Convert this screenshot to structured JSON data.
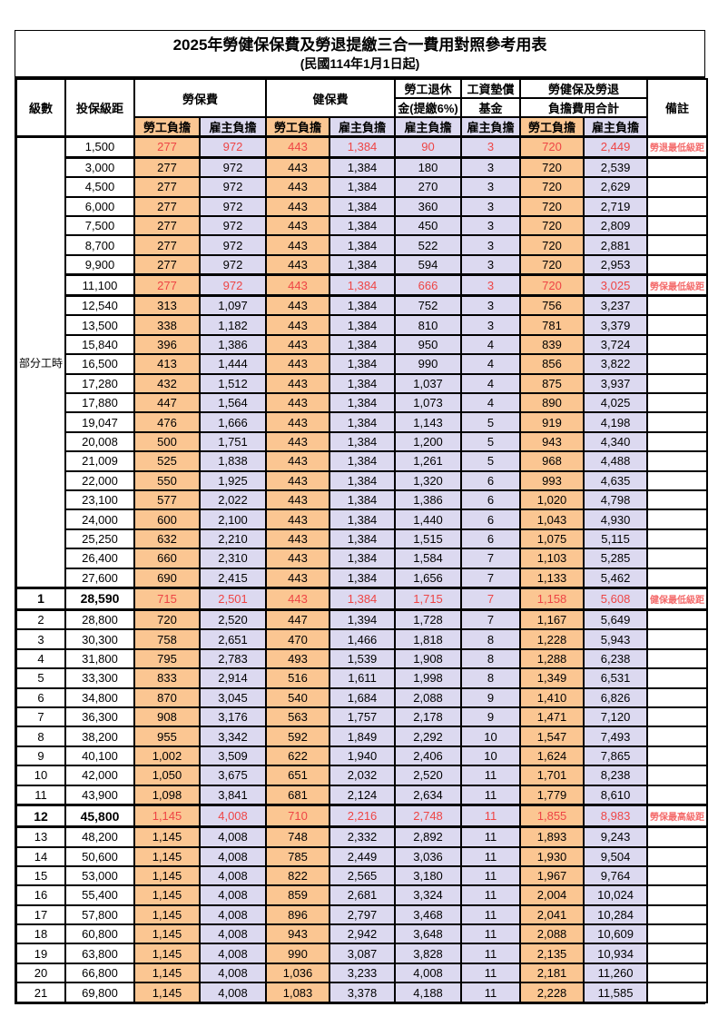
{
  "title": {
    "line1": "2025年勞健保保費及勞退提繳三合一費用對照參考用表",
    "line2": "(民國114年1月1日起)"
  },
  "colors": {
    "employee_bg": "#fbc692",
    "employer_bg": "#dcd9f0",
    "highlight_text": "#ee4545",
    "remark_text": "#f46b6b"
  },
  "header": {
    "col_level": "級數",
    "col_bracket": "投保級距",
    "grp_labor": "勞保費",
    "grp_health": "健保費",
    "grp_pension_l1": "勞工退休",
    "grp_pension_l2": "金(提繳6%)",
    "grp_wage_l1": "工資墊償",
    "grp_wage_l2": "基金",
    "grp_total_l1": "勞健保及勞退",
    "grp_total_l2": "負擔費用合計",
    "col_remark": "備註",
    "sub_employee": "勞工負擔",
    "sub_employer": "雇主負擔"
  },
  "table": {
    "part_time_label": "部分工時",
    "part_time_rowspan": 23,
    "rows": [
      {
        "level": "",
        "bracket": "1,500",
        "labor_emp": "277",
        "labor_er": "972",
        "health_emp": "443",
        "health_er": "1,384",
        "pension_er": "90",
        "wage_fund_er": "3",
        "total_emp": "720",
        "total_er": "2,449",
        "remark": "勞退最低級距",
        "highlight": true,
        "emph": false
      },
      {
        "level": "",
        "bracket": "3,000",
        "labor_emp": "277",
        "labor_er": "972",
        "health_emp": "443",
        "health_er": "1,384",
        "pension_er": "180",
        "wage_fund_er": "3",
        "total_emp": "720",
        "total_er": "2,539",
        "remark": "",
        "highlight": false,
        "emph": false
      },
      {
        "level": "",
        "bracket": "4,500",
        "labor_emp": "277",
        "labor_er": "972",
        "health_emp": "443",
        "health_er": "1,384",
        "pension_er": "270",
        "wage_fund_er": "3",
        "total_emp": "720",
        "total_er": "2,629",
        "remark": "",
        "highlight": false,
        "emph": false
      },
      {
        "level": "",
        "bracket": "6,000",
        "labor_emp": "277",
        "labor_er": "972",
        "health_emp": "443",
        "health_er": "1,384",
        "pension_er": "360",
        "wage_fund_er": "3",
        "total_emp": "720",
        "total_er": "2,719",
        "remark": "",
        "highlight": false,
        "emph": false
      },
      {
        "level": "",
        "bracket": "7,500",
        "labor_emp": "277",
        "labor_er": "972",
        "health_emp": "443",
        "health_er": "1,384",
        "pension_er": "450",
        "wage_fund_er": "3",
        "total_emp": "720",
        "total_er": "2,809",
        "remark": "",
        "highlight": false,
        "emph": false
      },
      {
        "level": "",
        "bracket": "8,700",
        "labor_emp": "277",
        "labor_er": "972",
        "health_emp": "443",
        "health_er": "1,384",
        "pension_er": "522",
        "wage_fund_er": "3",
        "total_emp": "720",
        "total_er": "2,881",
        "remark": "",
        "highlight": false,
        "emph": false
      },
      {
        "level": "",
        "bracket": "9,900",
        "labor_emp": "277",
        "labor_er": "972",
        "health_emp": "443",
        "health_er": "1,384",
        "pension_er": "594",
        "wage_fund_er": "3",
        "total_emp": "720",
        "total_er": "2,953",
        "remark": "",
        "highlight": false,
        "emph": false
      },
      {
        "level": "",
        "bracket": "11,100",
        "labor_emp": "277",
        "labor_er": "972",
        "health_emp": "443",
        "health_er": "1,384",
        "pension_er": "666",
        "wage_fund_er": "3",
        "total_emp": "720",
        "total_er": "3,025",
        "remark": "勞保最低級距",
        "highlight": true,
        "emph": false
      },
      {
        "level": "",
        "bracket": "12,540",
        "labor_emp": "313",
        "labor_er": "1,097",
        "health_emp": "443",
        "health_er": "1,384",
        "pension_er": "752",
        "wage_fund_er": "3",
        "total_emp": "756",
        "total_er": "3,237",
        "remark": "",
        "highlight": false,
        "emph": false
      },
      {
        "level": "",
        "bracket": "13,500",
        "labor_emp": "338",
        "labor_er": "1,182",
        "health_emp": "443",
        "health_er": "1,384",
        "pension_er": "810",
        "wage_fund_er": "3",
        "total_emp": "781",
        "total_er": "3,379",
        "remark": "",
        "highlight": false,
        "emph": false
      },
      {
        "level": "",
        "bracket": "15,840",
        "labor_emp": "396",
        "labor_er": "1,386",
        "health_emp": "443",
        "health_er": "1,384",
        "pension_er": "950",
        "wage_fund_er": "4",
        "total_emp": "839",
        "total_er": "3,724",
        "remark": "",
        "highlight": false,
        "emph": false
      },
      {
        "level": "",
        "bracket": "16,500",
        "labor_emp": "413",
        "labor_er": "1,444",
        "health_emp": "443",
        "health_er": "1,384",
        "pension_er": "990",
        "wage_fund_er": "4",
        "total_emp": "856",
        "total_er": "3,822",
        "remark": "",
        "highlight": false,
        "emph": false
      },
      {
        "level": "",
        "bracket": "17,280",
        "labor_emp": "432",
        "labor_er": "1,512",
        "health_emp": "443",
        "health_er": "1,384",
        "pension_er": "1,037",
        "wage_fund_er": "4",
        "total_emp": "875",
        "total_er": "3,937",
        "remark": "",
        "highlight": false,
        "emph": false
      },
      {
        "level": "",
        "bracket": "17,880",
        "labor_emp": "447",
        "labor_er": "1,564",
        "health_emp": "443",
        "health_er": "1,384",
        "pension_er": "1,073",
        "wage_fund_er": "4",
        "total_emp": "890",
        "total_er": "4,025",
        "remark": "",
        "highlight": false,
        "emph": false
      },
      {
        "level": "",
        "bracket": "19,047",
        "labor_emp": "476",
        "labor_er": "1,666",
        "health_emp": "443",
        "health_er": "1,384",
        "pension_er": "1,143",
        "wage_fund_er": "5",
        "total_emp": "919",
        "total_er": "4,198",
        "remark": "",
        "highlight": false,
        "emph": false
      },
      {
        "level": "",
        "bracket": "20,008",
        "labor_emp": "500",
        "labor_er": "1,751",
        "health_emp": "443",
        "health_er": "1,384",
        "pension_er": "1,200",
        "wage_fund_er": "5",
        "total_emp": "943",
        "total_er": "4,340",
        "remark": "",
        "highlight": false,
        "emph": false
      },
      {
        "level": "",
        "bracket": "21,009",
        "labor_emp": "525",
        "labor_er": "1,838",
        "health_emp": "443",
        "health_er": "1,384",
        "pension_er": "1,261",
        "wage_fund_er": "5",
        "total_emp": "968",
        "total_er": "4,488",
        "remark": "",
        "highlight": false,
        "emph": false
      },
      {
        "level": "",
        "bracket": "22,000",
        "labor_emp": "550",
        "labor_er": "1,925",
        "health_emp": "443",
        "health_er": "1,384",
        "pension_er": "1,320",
        "wage_fund_er": "6",
        "total_emp": "993",
        "total_er": "4,635",
        "remark": "",
        "highlight": false,
        "emph": false
      },
      {
        "level": "",
        "bracket": "23,100",
        "labor_emp": "577",
        "labor_er": "2,022",
        "health_emp": "443",
        "health_er": "1,384",
        "pension_er": "1,386",
        "wage_fund_er": "6",
        "total_emp": "1,020",
        "total_er": "4,798",
        "remark": "",
        "highlight": false,
        "emph": false
      },
      {
        "level": "",
        "bracket": "24,000",
        "labor_emp": "600",
        "labor_er": "2,100",
        "health_emp": "443",
        "health_er": "1,384",
        "pension_er": "1,440",
        "wage_fund_er": "6",
        "total_emp": "1,043",
        "total_er": "4,930",
        "remark": "",
        "highlight": false,
        "emph": false
      },
      {
        "level": "",
        "bracket": "25,250",
        "labor_emp": "632",
        "labor_er": "2,210",
        "health_emp": "443",
        "health_er": "1,384",
        "pension_er": "1,515",
        "wage_fund_er": "6",
        "total_emp": "1,075",
        "total_er": "5,115",
        "remark": "",
        "highlight": false,
        "emph": false
      },
      {
        "level": "",
        "bracket": "26,400",
        "labor_emp": "660",
        "labor_er": "2,310",
        "health_emp": "443",
        "health_er": "1,384",
        "pension_er": "1,584",
        "wage_fund_er": "7",
        "total_emp": "1,103",
        "total_er": "5,285",
        "remark": "",
        "highlight": false,
        "emph": false
      },
      {
        "level": "",
        "bracket": "27,600",
        "labor_emp": "690",
        "labor_er": "2,415",
        "health_emp": "443",
        "health_er": "1,384",
        "pension_er": "1,656",
        "wage_fund_er": "7",
        "total_emp": "1,133",
        "total_er": "5,462",
        "remark": "",
        "highlight": false,
        "emph": false
      },
      {
        "level": "1",
        "bracket": "28,590",
        "labor_emp": "715",
        "labor_er": "2,501",
        "health_emp": "443",
        "health_er": "1,384",
        "pension_er": "1,715",
        "wage_fund_er": "7",
        "total_emp": "1,158",
        "total_er": "5,608",
        "remark": "健保最低級距",
        "highlight": true,
        "emph": true
      },
      {
        "level": "2",
        "bracket": "28,800",
        "labor_emp": "720",
        "labor_er": "2,520",
        "health_emp": "447",
        "health_er": "1,394",
        "pension_er": "1,728",
        "wage_fund_er": "7",
        "total_emp": "1,167",
        "total_er": "5,649",
        "remark": "",
        "highlight": false,
        "emph": false
      },
      {
        "level": "3",
        "bracket": "30,300",
        "labor_emp": "758",
        "labor_er": "2,651",
        "health_emp": "470",
        "health_er": "1,466",
        "pension_er": "1,818",
        "wage_fund_er": "8",
        "total_emp": "1,228",
        "total_er": "5,943",
        "remark": "",
        "highlight": false,
        "emph": false
      },
      {
        "level": "4",
        "bracket": "31,800",
        "labor_emp": "795",
        "labor_er": "2,783",
        "health_emp": "493",
        "health_er": "1,539",
        "pension_er": "1,908",
        "wage_fund_er": "8",
        "total_emp": "1,288",
        "total_er": "6,238",
        "remark": "",
        "highlight": false,
        "emph": false
      },
      {
        "level": "5",
        "bracket": "33,300",
        "labor_emp": "833",
        "labor_er": "2,914",
        "health_emp": "516",
        "health_er": "1,611",
        "pension_er": "1,998",
        "wage_fund_er": "8",
        "total_emp": "1,349",
        "total_er": "6,531",
        "remark": "",
        "highlight": false,
        "emph": false
      },
      {
        "level": "6",
        "bracket": "34,800",
        "labor_emp": "870",
        "labor_er": "3,045",
        "health_emp": "540",
        "health_er": "1,684",
        "pension_er": "2,088",
        "wage_fund_er": "9",
        "total_emp": "1,410",
        "total_er": "6,826",
        "remark": "",
        "highlight": false,
        "emph": false
      },
      {
        "level": "7",
        "bracket": "36,300",
        "labor_emp": "908",
        "labor_er": "3,176",
        "health_emp": "563",
        "health_er": "1,757",
        "pension_er": "2,178",
        "wage_fund_er": "9",
        "total_emp": "1,471",
        "total_er": "7,120",
        "remark": "",
        "highlight": false,
        "emph": false
      },
      {
        "level": "8",
        "bracket": "38,200",
        "labor_emp": "955",
        "labor_er": "3,342",
        "health_emp": "592",
        "health_er": "1,849",
        "pension_er": "2,292",
        "wage_fund_er": "10",
        "total_emp": "1,547",
        "total_er": "7,493",
        "remark": "",
        "highlight": false,
        "emph": false
      },
      {
        "level": "9",
        "bracket": "40,100",
        "labor_emp": "1,002",
        "labor_er": "3,509",
        "health_emp": "622",
        "health_er": "1,940",
        "pension_er": "2,406",
        "wage_fund_er": "10",
        "total_emp": "1,624",
        "total_er": "7,865",
        "remark": "",
        "highlight": false,
        "emph": false
      },
      {
        "level": "10",
        "bracket": "42,000",
        "labor_emp": "1,050",
        "labor_er": "3,675",
        "health_emp": "651",
        "health_er": "2,032",
        "pension_er": "2,520",
        "wage_fund_er": "11",
        "total_emp": "1,701",
        "total_er": "8,238",
        "remark": "",
        "highlight": false,
        "emph": false
      },
      {
        "level": "11",
        "bracket": "43,900",
        "labor_emp": "1,098",
        "labor_er": "3,841",
        "health_emp": "681",
        "health_er": "2,124",
        "pension_er": "2,634",
        "wage_fund_er": "11",
        "total_emp": "1,779",
        "total_er": "8,610",
        "remark": "",
        "highlight": false,
        "emph": false
      },
      {
        "level": "12",
        "bracket": "45,800",
        "labor_emp": "1,145",
        "labor_er": "4,008",
        "health_emp": "710",
        "health_er": "2,216",
        "pension_er": "2,748",
        "wage_fund_er": "11",
        "total_emp": "1,855",
        "total_er": "8,983",
        "remark": "勞保最高級距",
        "highlight": true,
        "emph": true
      },
      {
        "level": "13",
        "bracket": "48,200",
        "labor_emp": "1,145",
        "labor_er": "4,008",
        "health_emp": "748",
        "health_er": "2,332",
        "pension_er": "2,892",
        "wage_fund_er": "11",
        "total_emp": "1,893",
        "total_er": "9,243",
        "remark": "",
        "highlight": false,
        "emph": false
      },
      {
        "level": "14",
        "bracket": "50,600",
        "labor_emp": "1,145",
        "labor_er": "4,008",
        "health_emp": "785",
        "health_er": "2,449",
        "pension_er": "3,036",
        "wage_fund_er": "11",
        "total_emp": "1,930",
        "total_er": "9,504",
        "remark": "",
        "highlight": false,
        "emph": false
      },
      {
        "level": "15",
        "bracket": "53,000",
        "labor_emp": "1,145",
        "labor_er": "4,008",
        "health_emp": "822",
        "health_er": "2,565",
        "pension_er": "3,180",
        "wage_fund_er": "11",
        "total_emp": "1,967",
        "total_er": "9,764",
        "remark": "",
        "highlight": false,
        "emph": false
      },
      {
        "level": "16",
        "bracket": "55,400",
        "labor_emp": "1,145",
        "labor_er": "4,008",
        "health_emp": "859",
        "health_er": "2,681",
        "pension_er": "3,324",
        "wage_fund_er": "11",
        "total_emp": "2,004",
        "total_er": "10,024",
        "remark": "",
        "highlight": false,
        "emph": false
      },
      {
        "level": "17",
        "bracket": "57,800",
        "labor_emp": "1,145",
        "labor_er": "4,008",
        "health_emp": "896",
        "health_er": "2,797",
        "pension_er": "3,468",
        "wage_fund_er": "11",
        "total_emp": "2,041",
        "total_er": "10,284",
        "remark": "",
        "highlight": false,
        "emph": false
      },
      {
        "level": "18",
        "bracket": "60,800",
        "labor_emp": "1,145",
        "labor_er": "4,008",
        "health_emp": "943",
        "health_er": "2,942",
        "pension_er": "3,648",
        "wage_fund_er": "11",
        "total_emp": "2,088",
        "total_er": "10,609",
        "remark": "",
        "highlight": false,
        "emph": false
      },
      {
        "level": "19",
        "bracket": "63,800",
        "labor_emp": "1,145",
        "labor_er": "4,008",
        "health_emp": "990",
        "health_er": "3,087",
        "pension_er": "3,828",
        "wage_fund_er": "11",
        "total_emp": "2,135",
        "total_er": "10,934",
        "remark": "",
        "highlight": false,
        "emph": false
      },
      {
        "level": "20",
        "bracket": "66,800",
        "labor_emp": "1,145",
        "labor_er": "4,008",
        "health_emp": "1,036",
        "health_er": "3,233",
        "pension_er": "4,008",
        "wage_fund_er": "11",
        "total_emp": "2,181",
        "total_er": "11,260",
        "remark": "",
        "highlight": false,
        "emph": false
      },
      {
        "level": "21",
        "bracket": "69,800",
        "labor_emp": "1,145",
        "labor_er": "4,008",
        "health_emp": "1,083",
        "health_er": "3,378",
        "pension_er": "4,188",
        "wage_fund_er": "11",
        "total_emp": "2,228",
        "total_er": "11,585",
        "remark": "",
        "highlight": false,
        "emph": false
      }
    ]
  }
}
